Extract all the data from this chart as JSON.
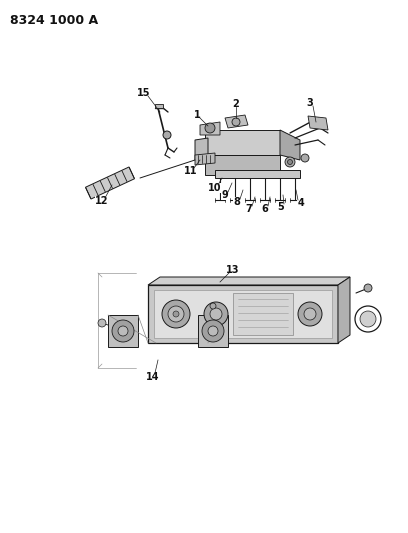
{
  "title": "8324 1000 A",
  "background_color": "#ffffff",
  "fig_width": 4.08,
  "fig_height": 5.33,
  "dpi": 100,
  "lc": "#1a1a1a",
  "fc_light": "#c8c8c8",
  "fc_mid": "#aaaaaa",
  "fc_dark": "#888888"
}
